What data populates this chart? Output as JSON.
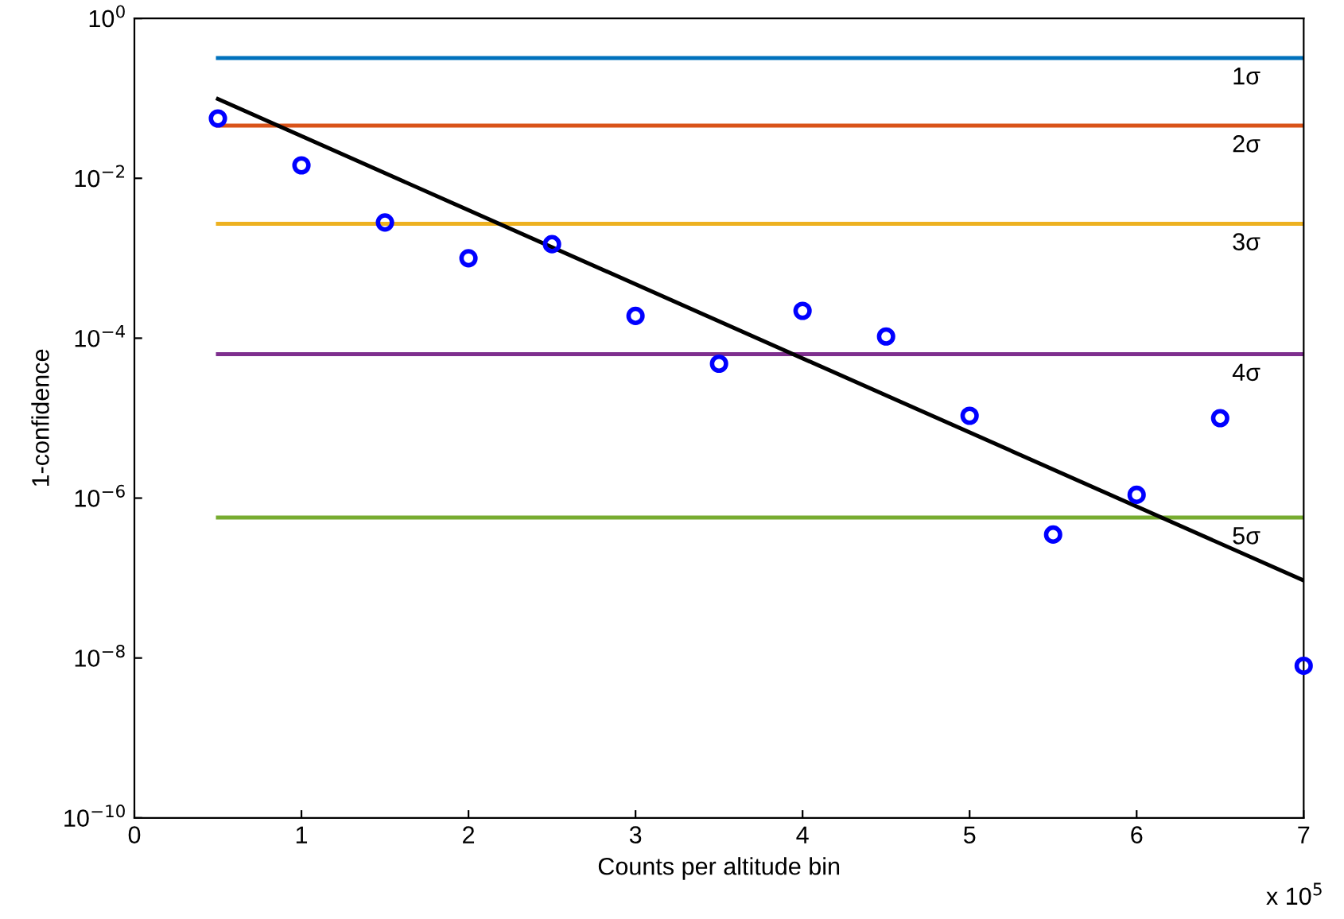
{
  "chart_data": {
    "type": "line",
    "xlabel": "Counts per altitude bin",
    "ylabel": "1-confidence",
    "annotations": [
      "x 10$^{5}$"
    ],
    "log": "y",
    "xlim": [
      0,
      7
    ],
    "ylim": [
      1e-10,
      1
    ],
    "xticks": [
      0,
      1,
      2,
      3,
      4,
      5,
      6,
      7
    ],
    "yticks": [
      {
        "value": 1e-10,
        "label": "10$^{−10}$"
      },
      {
        "value": 1e-08,
        "label": "10$^{−8}$"
      },
      {
        "value": 1e-06,
        "label": "10$^{−6}$"
      },
      {
        "value": 0.0001,
        "label": "10$^{−4}$"
      },
      {
        "value": 0.01,
        "label": "10$^{−2}$"
      },
      {
        "value": 1,
        "label": "10$^{0}$"
      }
    ],
    "grid": false,
    "series": [
      {
        "name": "1σ",
        "color": "#0072bd",
        "x": [
          0.5,
          7
        ],
        "values": [
          0.32,
          0.32
        ]
      },
      {
        "name": "2σ",
        "color": "#d95319",
        "x": [
          0.5,
          7
        ],
        "values": [
          0.0455,
          0.0455
        ]
      },
      {
        "name": "3σ",
        "color": "#edb120",
        "x": [
          0.5,
          7
        ],
        "values": [
          0.0027,
          0.0027
        ]
      },
      {
        "name": "4σ",
        "color": "#7e2f8e",
        "x": [
          0.5,
          7
        ],
        "values": [
          6.3e-05,
          6.3e-05
        ]
      },
      {
        "name": "5σ",
        "color": "#77ac30",
        "x": [
          0.5,
          7
        ],
        "values": [
          5.7e-07,
          5.7e-07
        ]
      },
      {
        "color": "#000000",
        "x": [
          0.5,
          7
        ],
        "values": [
          0.098,
          9.3e-08
        ]
      },
      {
        "type": "scatter",
        "marker": "circle",
        "color": "#0000ff",
        "x": [
          0.5,
          1,
          1.5,
          2,
          2.5,
          3,
          3.5,
          4,
          4.5,
          5,
          5.5,
          6,
          6.5,
          7
        ],
        "values": [
          0.056,
          0.0145,
          0.0028,
          0.001,
          0.0015,
          0.00019,
          4.8e-05,
          0.00022,
          0.000105,
          1.07e-05,
          3.5e-07,
          1.1e-06,
          1e-05,
          8e-09
        ]
      }
    ]
  }
}
